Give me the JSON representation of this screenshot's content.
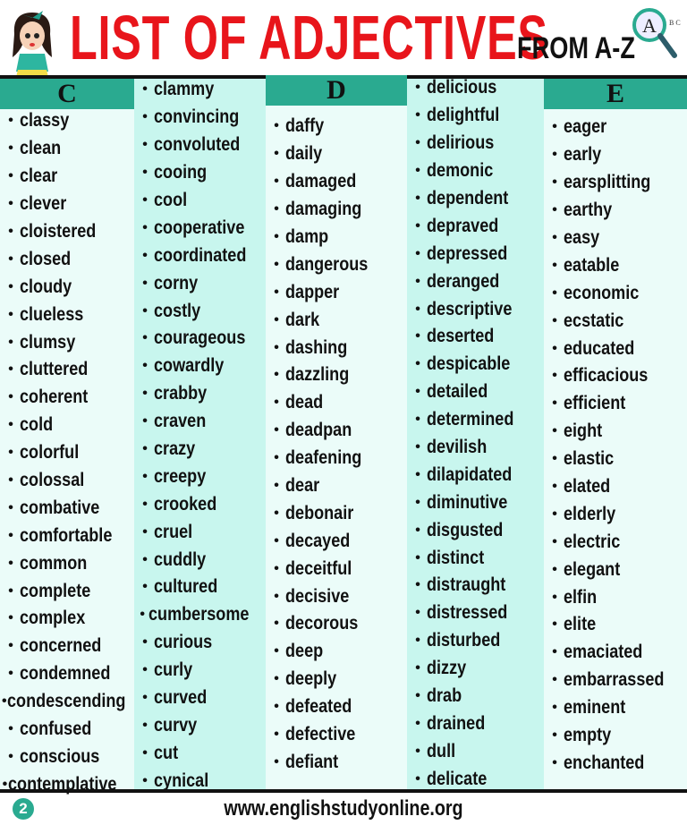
{
  "header": {
    "title": "LIST OF ADJECTIVES",
    "subtitle": "FROM A-Z",
    "magnifier_letter": "A",
    "magnifier_small": "B C"
  },
  "colors": {
    "title_red": "#e8151b",
    "header_teal": "#2aaa90",
    "col_light": "#ebfcf9",
    "col_dark": "#c8f6ee"
  },
  "columns": [
    {
      "heading": "C",
      "items": [
        "classy",
        "clean",
        "clear",
        "clever",
        "cloistered",
        "closed",
        "cloudy",
        "clueless",
        "clumsy",
        "cluttered",
        "coherent",
        "cold",
        "colorful",
        "colossal",
        "combative",
        "comfortable",
        "common",
        "complete",
        "complex",
        "concerned",
        "condemned",
        "condescending",
        "confused",
        "conscious",
        "contemplative"
      ]
    },
    {
      "heading": "",
      "items": [
        "clammy",
        "convincing",
        "convoluted",
        "cooing",
        "cool",
        "cooperative",
        "coordinated",
        "corny",
        "costly",
        "courageous",
        "cowardly",
        "crabby",
        "craven",
        "crazy",
        "creepy",
        "crooked",
        "cruel",
        "cuddly",
        "cultured",
        "cumbersome",
        "curious",
        "curly",
        "curved",
        "curvy",
        "cut",
        "cynical"
      ]
    },
    {
      "heading": "D",
      "items": [
        "daffy",
        "daily",
        "damaged",
        "damaging",
        "damp",
        "dangerous",
        "dapper",
        "dark",
        "dashing",
        "dazzling",
        "dead",
        "deadpan",
        "deafening",
        "dear",
        "debonair",
        "decayed",
        "deceitful",
        "decisive",
        "decorous",
        "deep",
        "deeply",
        "defeated",
        "defective",
        "defiant"
      ]
    },
    {
      "heading": "",
      "items": [
        "delicious",
        "delightful",
        "delirious",
        "demonic",
        "dependent",
        "depraved",
        "depressed",
        "deranged",
        "descriptive",
        "deserted",
        "despicable",
        "detailed",
        "determined",
        "devilish",
        "dilapidated",
        "diminutive",
        "disgusted",
        "distinct",
        "distraught",
        "distressed",
        "disturbed",
        "dizzy",
        "drab",
        "drained",
        "dull",
        "delicate"
      ]
    },
    {
      "heading": "E",
      "items": [
        "eager",
        "early",
        "earsplitting",
        "earthy",
        "easy",
        "eatable",
        "economic",
        "ecstatic",
        "educated",
        "efficacious",
        "efficient",
        "eight",
        "elastic",
        "elated",
        "elderly",
        "electric",
        "elegant",
        "elfin",
        "elite",
        "emaciated",
        "embarrassed",
        "eminent",
        "empty",
        "enchanted"
      ]
    }
  ],
  "footer": {
    "page_number": "2",
    "url": "www.englishstudyonline.org"
  }
}
